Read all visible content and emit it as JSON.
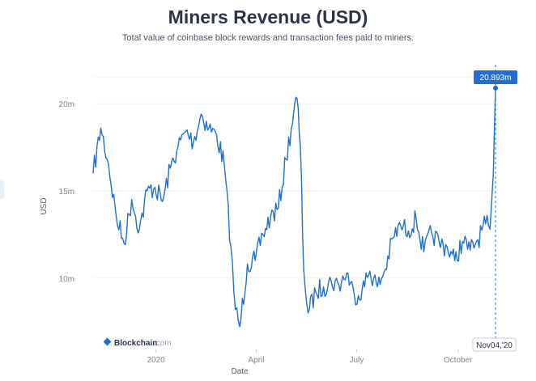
{
  "header": {
    "title": "Miners Revenue (USD)",
    "subtitle": "Total value of coinbase block rewards and transaction fees paid to miners."
  },
  "watermark": {
    "brand": "Blockchain",
    "suffix": ".com"
  },
  "tooltip": {
    "value_label": "20.893m",
    "date_label": "Nov04,'20"
  },
  "colors": {
    "line": "#1f6fd1",
    "accent": "#1f6fd1",
    "grid": "#eef0f3",
    "text": "#2b3547"
  },
  "chart_data": {
    "type": "line",
    "title": "Miners Revenue (USD)",
    "subtitle": "Total value of coinbase block rewards and transaction fees paid to miners.",
    "xlabel": "Date",
    "ylabel": "USD",
    "x_ticks": [
      {
        "date": "2020-01-01",
        "label": "2020"
      },
      {
        "date": "2020-04-01",
        "label": "April"
      },
      {
        "date": "2020-07-01",
        "label": "July"
      },
      {
        "date": "2020-10-01",
        "label": "October"
      }
    ],
    "y_ticks": [
      {
        "value": 10000000,
        "label": "10m"
      },
      {
        "value": 15000000,
        "label": "15m"
      },
      {
        "value": 20000000,
        "label": "20m"
      }
    ],
    "x_range": [
      "2019-11-05",
      "2020-11-04"
    ],
    "ylim": [
      6000000,
      22000000
    ],
    "grid": true,
    "highlight": {
      "date": "2020-11-04",
      "value": 20893000
    },
    "series": [
      {
        "x": [
          "2019-11-05",
          "2019-11-12",
          "2019-11-19",
          "2019-11-26",
          "2019-12-03",
          "2019-12-10",
          "2019-12-17",
          "2019-12-24",
          "2019-12-31",
          "2020-01-07",
          "2020-01-14",
          "2020-01-21",
          "2020-01-28",
          "2020-02-04",
          "2020-02-11",
          "2020-02-18",
          "2020-02-25",
          "2020-03-03",
          "2020-03-09",
          "2020-03-13",
          "2020-03-17",
          "2020-03-24",
          "2020-03-31",
          "2020-04-07",
          "2020-04-14",
          "2020-04-21",
          "2020-04-28",
          "2020-05-05",
          "2020-05-08",
          "2020-05-11",
          "2020-05-14",
          "2020-05-18",
          "2020-05-25",
          "2020-06-01",
          "2020-06-08",
          "2020-06-15",
          "2020-06-22",
          "2020-06-29",
          "2020-07-06",
          "2020-07-13",
          "2020-07-20",
          "2020-07-27",
          "2020-08-03",
          "2020-08-10",
          "2020-08-17",
          "2020-08-24",
          "2020-08-31",
          "2020-09-07",
          "2020-09-14",
          "2020-09-21",
          "2020-09-28",
          "2020-10-05",
          "2020-10-12",
          "2020-10-19",
          "2020-10-26",
          "2020-10-30",
          "2020-11-02",
          "2020-11-04"
        ],
        "values": [
          16000000,
          18600000,
          16500000,
          13500000,
          12000000,
          14500000,
          12800000,
          15000000,
          15200000,
          14400000,
          16300000,
          17500000,
          18400000,
          17800000,
          19400000,
          18600000,
          18200000,
          16500000,
          11800000,
          8200000,
          7200000,
          10800000,
          11000000,
          12500000,
          13500000,
          14000000,
          16800000,
          19500000,
          20300000,
          17500000,
          10500000,
          8000000,
          9200000,
          9500000,
          9800000,
          9600000,
          10300000,
          9000000,
          9300000,
          10400000,
          9500000,
          10500000,
          12300000,
          13000000,
          12700000,
          13400000,
          11500000,
          12600000,
          12000000,
          11800000,
          11000000,
          12100000,
          11600000,
          12200000,
          13100000,
          12800000,
          16000000,
          20893000
        ]
      }
    ]
  }
}
